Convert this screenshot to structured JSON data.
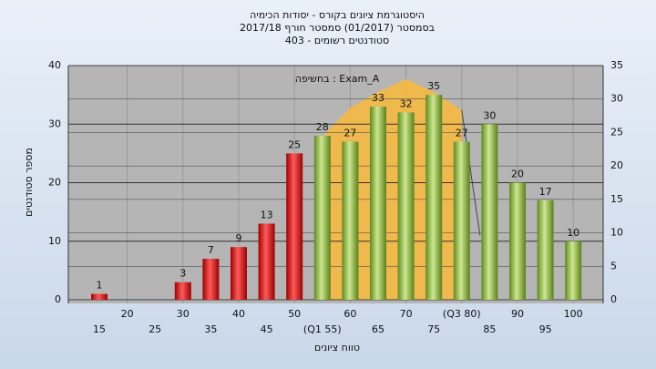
{
  "chart_data": {
    "type": "bar",
    "title": "היסטוגרמת ציונים בקורס - יסודות הכימיה",
    "subtitle": "בסמסטר  (01/2017)  סמסטר חורף 2017/18",
    "subtitle2": "סטודנטים רשומים - 403",
    "legend": "בחשיפה : Exam_A",
    "x_label": "טווח ציונים",
    "y_label": "מספר סטודנטים",
    "categories": [
      "15",
      "20",
      "25",
      "30",
      "35",
      "40",
      "45",
      "50",
      "(Q1 55)",
      "60",
      "65",
      "70",
      "75",
      "(Q3 80)",
      "85",
      "90",
      "95",
      "100"
    ],
    "values": [
      1,
      null,
      null,
      3,
      7,
      9,
      13,
      25,
      28,
      27,
      33,
      32,
      35,
      27,
      30,
      20,
      17,
      10
    ],
    "colors": [
      "red",
      "red",
      "red",
      "red",
      "red",
      "red",
      "red",
      "red",
      "green",
      "green",
      "green",
      "green",
      "green",
      "green",
      "green",
      "green",
      "green",
      "green"
    ],
    "area": {
      "color": "#f5b942",
      "values": [
        null,
        null,
        null,
        null,
        null,
        null,
        null,
        null,
        27.9,
        32.8,
        35.5,
        37.7,
        35.5,
        32.4,
        null,
        null,
        null,
        null
      ]
    },
    "ylim": [
      0,
      40
    ],
    "yticks": [
      0,
      10,
      20,
      30,
      40
    ],
    "y2lim": [
      0,
      35
    ],
    "y2ticks": [
      0,
      5,
      10,
      15,
      20,
      25,
      30,
      35
    ],
    "grid": true
  }
}
